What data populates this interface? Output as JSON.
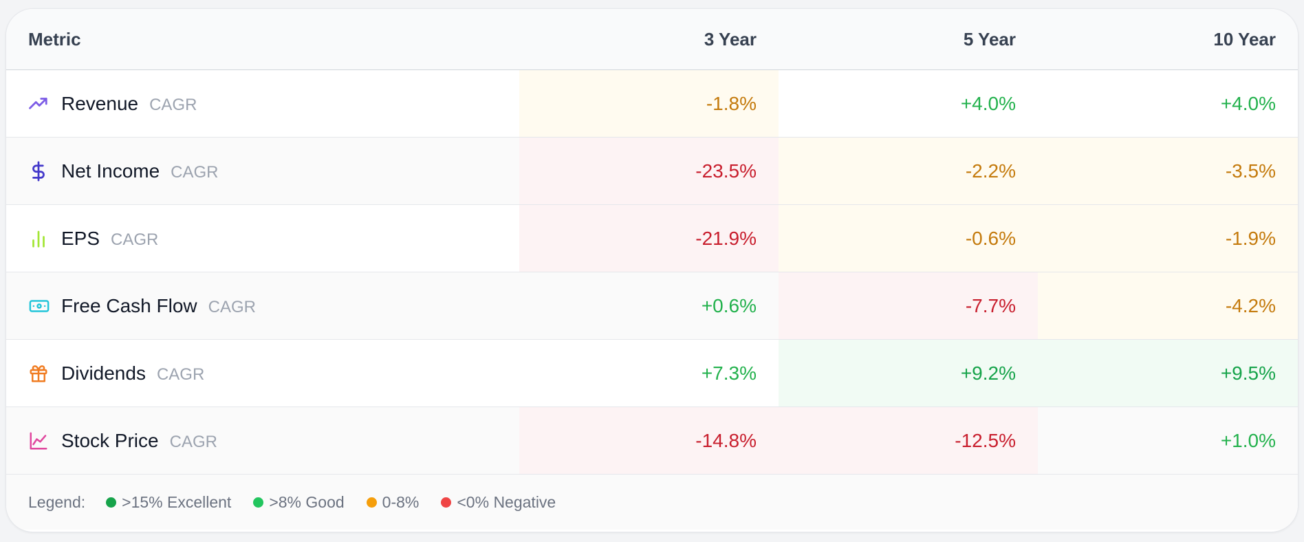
{
  "table": {
    "headers": {
      "metric": "Metric",
      "y3": "3 Year",
      "y5": "5 Year",
      "y10": "10 Year"
    },
    "rows": [
      {
        "name": "Revenue",
        "suffix": "CAGR",
        "icon": "trending-up-icon",
        "icon_color": "#7c5ce6",
        "y3": "-1.8%",
        "y5": "+4.0%",
        "y10": "+4.0%"
      },
      {
        "name": "Net Income",
        "suffix": "CAGR",
        "icon": "dollar-sign-icon",
        "icon_color": "#4338ca",
        "y3": "-23.5%",
        "y5": "-2.2%",
        "y10": "-3.5%"
      },
      {
        "name": "EPS",
        "suffix": "CAGR",
        "icon": "bar-chart-icon",
        "icon_color": "#a3e635",
        "y3": "-21.9%",
        "y5": "-0.6%",
        "y10": "-1.9%"
      },
      {
        "name": "Free Cash Flow",
        "suffix": "CAGR",
        "icon": "banknote-icon",
        "icon_color": "#22c5d9",
        "y3": "+0.6%",
        "y5": "-7.7%",
        "y10": "-4.2%"
      },
      {
        "name": "Dividends",
        "suffix": "CAGR",
        "icon": "gift-icon",
        "icon_color": "#f07c22",
        "y3": "+7.3%",
        "y5": "+9.2%",
        "y10": "+9.5%"
      },
      {
        "name": "Stock Price",
        "suffix": "CAGR",
        "icon": "line-chart-icon",
        "icon_color": "#e0479e",
        "y3": "-14.8%",
        "y5": "-12.5%",
        "y10": "+1.0%"
      }
    ]
  },
  "legend": {
    "label": "Legend:",
    "items": [
      {
        "text": ">15% Excellent",
        "color": "#16a34a"
      },
      {
        "text": ">8% Good",
        "color": "#22c55e"
      },
      {
        "text": "0-8%",
        "color": "#f59e0b"
      },
      {
        "text": "<0% Negative",
        "color": "#ef4444"
      }
    ]
  }
}
